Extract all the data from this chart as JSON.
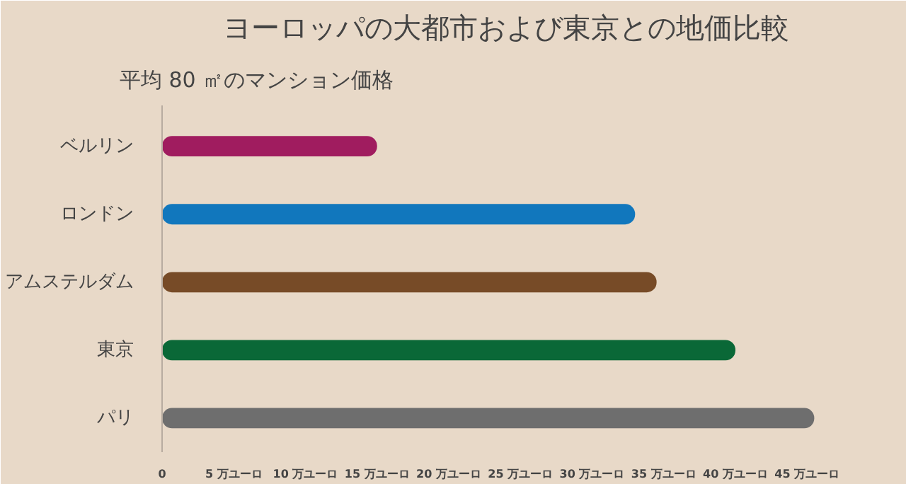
{
  "chart_data": {
    "type": "bar",
    "orientation": "horizontal",
    "title": "ヨーロッパの大都市および東京との地価比較",
    "subtitle": "平均 80 ㎡のマンション価格",
    "categories": [
      "ベルリン",
      "ロンドン",
      "アムステルダム",
      "東京",
      "パリ"
    ],
    "values": [
      15,
      33,
      34.5,
      40,
      45.5
    ],
    "colors": [
      "#a01c5f",
      "#1177bd",
      "#774b27",
      "#0a6837",
      "#6e6e6e"
    ],
    "xlim": [
      0,
      48
    ],
    "xticks": [
      0,
      {
        "value": 5,
        "label": "5 万ユーロ"
      },
      {
        "value": 10,
        "label": "10 万ユーロ"
      },
      {
        "value": 15,
        "label": "15 万ユーロ"
      },
      {
        "value": 20,
        "label": "20 万ユーロ"
      },
      {
        "value": 25,
        "label": "25 万ユーロ"
      },
      {
        "value": 30,
        "label": "30 万ユーロ"
      },
      {
        "value": 35,
        "label": "35 万ユーロ"
      },
      {
        "value": 40,
        "label": "40 万ユーロ"
      },
      {
        "value": 45,
        "label": "45 万ユーロ"
      }
    ],
    "grid": false
  }
}
